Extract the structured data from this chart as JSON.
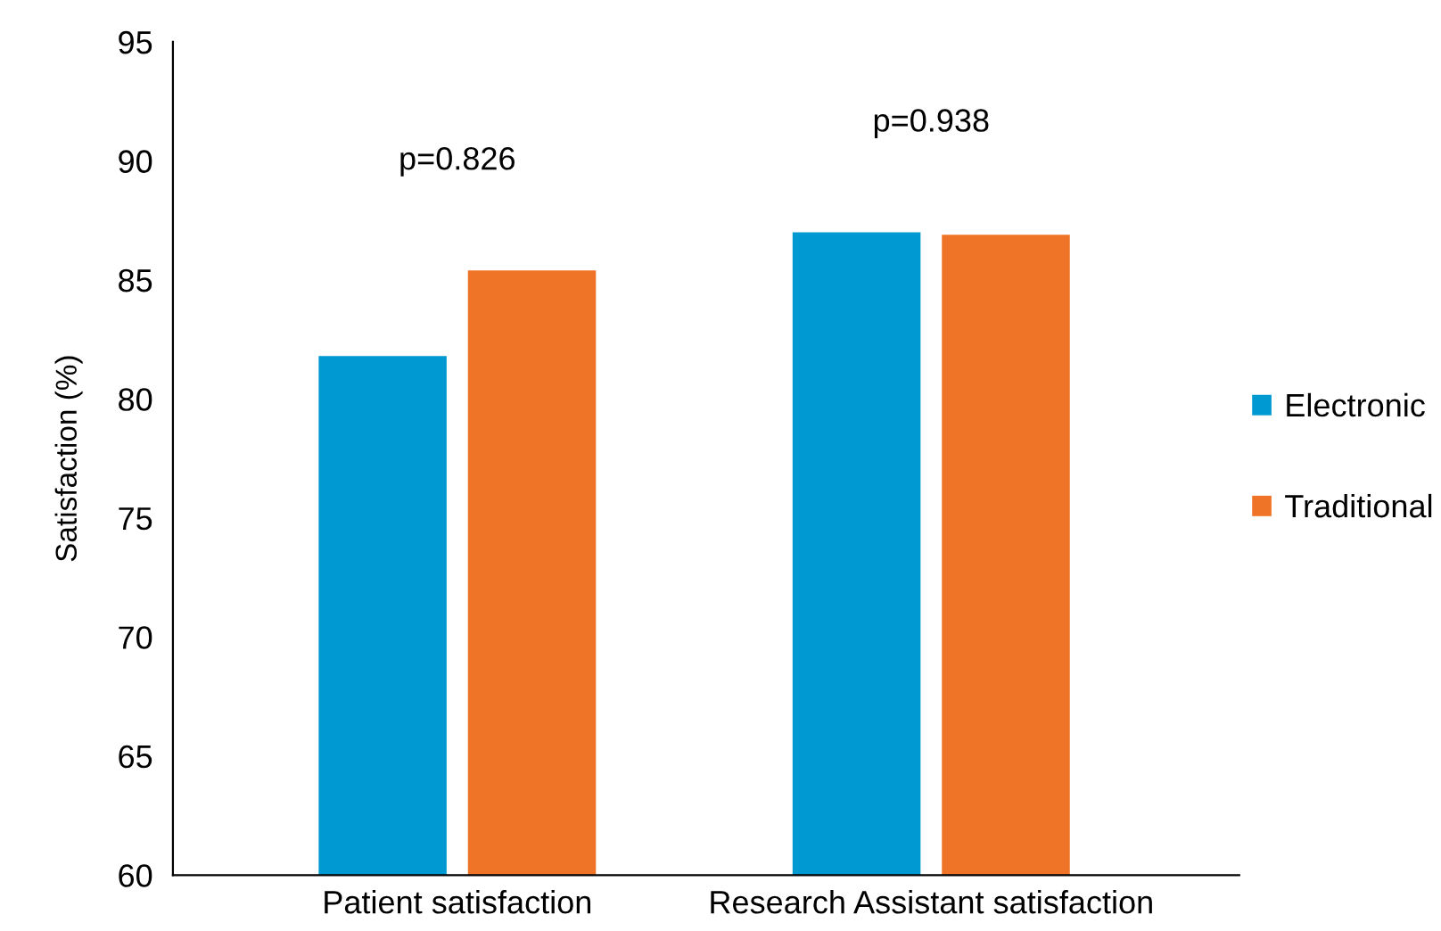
{
  "chart_data": {
    "type": "bar",
    "categories": [
      "Patient satisfaction",
      "Research Assistant satisfaction"
    ],
    "ylabel": "Satisfaction (%)",
    "series": [
      {
        "name": "Electronic",
        "color": "#0099d1",
        "values": [
          81.8,
          87.0
        ]
      },
      {
        "name": "Traditional",
        "color": "#f07427",
        "values": [
          85.4,
          86.9
        ]
      }
    ],
    "ylim": [
      60,
      95
    ],
    "yticks": [
      60,
      65,
      70,
      75,
      80,
      85,
      90,
      95
    ],
    "annotations": [
      "p=0.826",
      "p=0.938"
    ],
    "legend": "right",
    "grid": false
  }
}
